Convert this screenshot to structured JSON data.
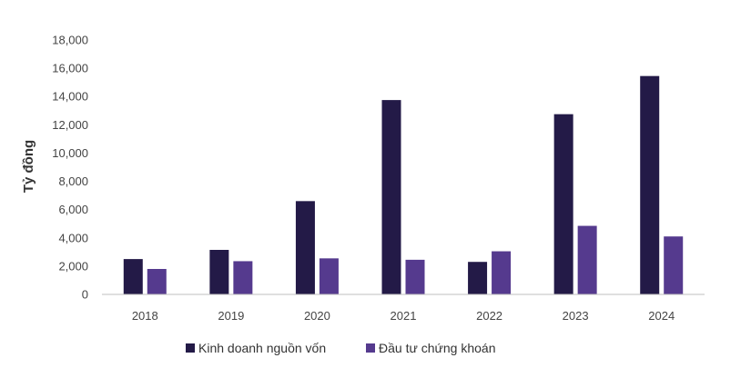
{
  "chart_data": {
    "type": "bar",
    "categories": [
      "2018",
      "2019",
      "2020",
      "2021",
      "2022",
      "2023",
      "2024"
    ],
    "series": [
      {
        "name": "Kinh doanh nguồn vốn",
        "color": "#231a47",
        "values": [
          2500,
          3150,
          6600,
          13750,
          2300,
          12750,
          15450
        ]
      },
      {
        "name": "Đầu tư chứng khoán",
        "color": "#553a8e",
        "values": [
          1800,
          2350,
          2550,
          2450,
          3050,
          4850,
          4100
        ]
      }
    ],
    "ylabel": "Tỷ đồng",
    "ylim": [
      0,
      18000
    ],
    "yticks": [
      0,
      2000,
      4000,
      6000,
      8000,
      10000,
      12000,
      14000,
      16000,
      18000
    ],
    "ytick_labels": [
      "0",
      "2,000",
      "4,000",
      "6,000",
      "8,000",
      "10,000",
      "12,000",
      "14,000",
      "16,000",
      "18,000"
    ],
    "grid": false,
    "legend": "bottom-center"
  }
}
